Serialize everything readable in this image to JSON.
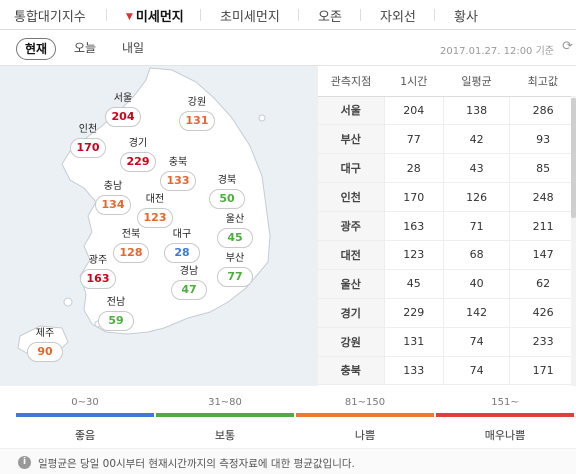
{
  "top_tabs": [
    {
      "label": "통합대기지수",
      "active": false
    },
    {
      "label": "미세먼지",
      "active": true
    },
    {
      "label": "초미세먼지",
      "active": false
    },
    {
      "label": "오존",
      "active": false
    },
    {
      "label": "자외선",
      "active": false
    },
    {
      "label": "황사",
      "active": false
    }
  ],
  "sub_tabs": [
    {
      "label": "현재",
      "active": true
    },
    {
      "label": "오늘",
      "active": false
    },
    {
      "label": "내일",
      "active": false
    }
  ],
  "datetime": "2017.01.27. 12:00 기준",
  "refresh_icon": "refresh-icon",
  "map_cities": [
    {
      "name": "서울",
      "value": "204",
      "color": "#d0021b"
    },
    {
      "name": "강원",
      "value": "131",
      "color": "#e8662b"
    },
    {
      "name": "인천",
      "value": "170",
      "color": "#d0021b"
    },
    {
      "name": "경기",
      "value": "229",
      "color": "#d0021b"
    },
    {
      "name": "충북",
      "value": "133",
      "color": "#e8662b"
    },
    {
      "name": "충남",
      "value": "134",
      "color": "#e8662b"
    },
    {
      "name": "대전",
      "value": "123",
      "color": "#e8662b"
    },
    {
      "name": "경북",
      "value": "50",
      "color": "#4caf3d"
    },
    {
      "name": "울산",
      "value": "45",
      "color": "#4caf3d"
    },
    {
      "name": "전북",
      "value": "128",
      "color": "#e8662b"
    },
    {
      "name": "대구",
      "value": "28",
      "color": "#3e7bd6"
    },
    {
      "name": "부산",
      "value": "77",
      "color": "#4caf3d"
    },
    {
      "name": "광주",
      "value": "163",
      "color": "#d0021b"
    },
    {
      "name": "경남",
      "value": "47",
      "color": "#4caf3d"
    },
    {
      "name": "전남",
      "value": "59",
      "color": "#4caf3d"
    },
    {
      "name": "제주",
      "value": "90",
      "color": "#e8662b"
    }
  ],
  "table": {
    "headers": [
      "관측지점",
      "1시간",
      "일평균",
      "최고값"
    ],
    "rows": [
      [
        "서울",
        "204",
        "138",
        "286"
      ],
      [
        "부산",
        "77",
        "42",
        "93"
      ],
      [
        "대구",
        "28",
        "43",
        "85"
      ],
      [
        "인천",
        "170",
        "126",
        "248"
      ],
      [
        "광주",
        "163",
        "71",
        "211"
      ],
      [
        "대전",
        "123",
        "68",
        "147"
      ],
      [
        "울산",
        "45",
        "40",
        "62"
      ],
      [
        "경기",
        "229",
        "142",
        "426"
      ],
      [
        "강원",
        "131",
        "74",
        "233"
      ],
      [
        "충북",
        "133",
        "74",
        "171"
      ]
    ]
  },
  "legend": [
    {
      "range": "0~30",
      "label": "좋음",
      "color": "#3e7bd6"
    },
    {
      "range": "31~80",
      "label": "보통",
      "color": "#4caf3d"
    },
    {
      "range": "81~150",
      "label": "나쁨",
      "color": "#ee7a2e"
    },
    {
      "range": "151~",
      "label": "매우나쁨",
      "color": "#e0403a"
    }
  ],
  "note": {
    "icon": "info-icon",
    "info_glyph": "i",
    "text": "일평균은 당일 00시부터 현재시간까지의 측정자료에 대한 평균값입니다."
  }
}
